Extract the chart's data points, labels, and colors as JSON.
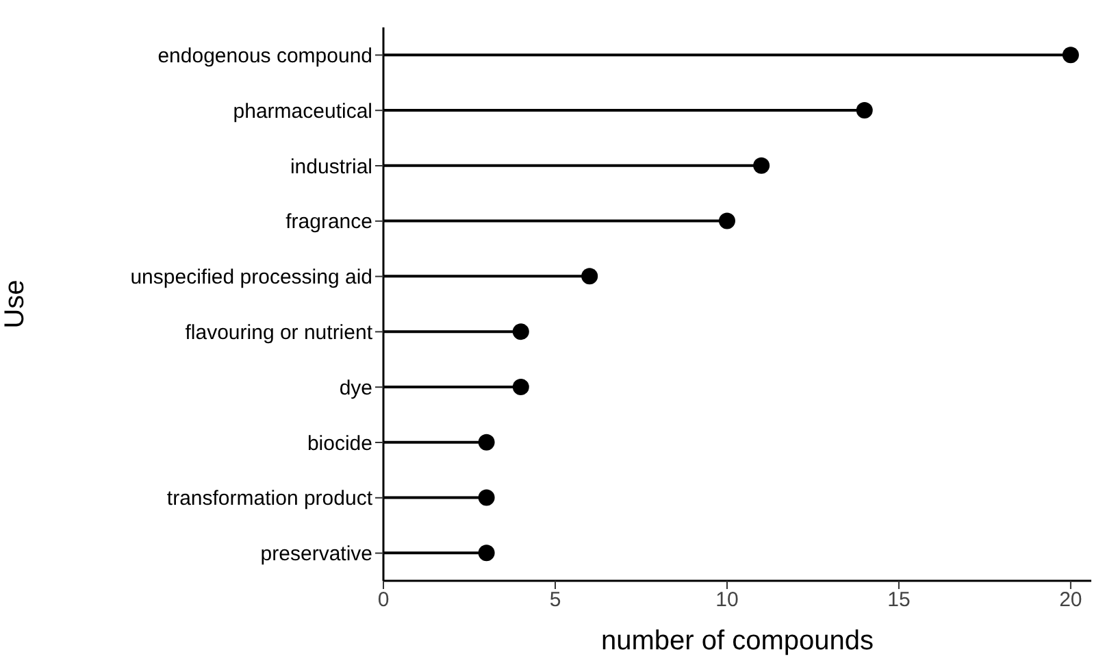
{
  "chart_data": {
    "type": "lollipop",
    "orientation": "horizontal",
    "xlabel": "number of compounds",
    "ylabel": "Use",
    "categories": [
      "endogenous compound",
      "pharmaceutical",
      "industrial",
      "fragrance",
      "unspecified processing aid",
      "flavouring or nutrient",
      "dye",
      "biocide",
      "transformation product",
      "preservative"
    ],
    "values": [
      20,
      14,
      11,
      10,
      6,
      4,
      4,
      3,
      3,
      3
    ],
    "color": "#000000",
    "marker": "circle",
    "xlim": [
      0,
      20.6
    ],
    "xticks": [
      0,
      5,
      10,
      15,
      20
    ]
  }
}
